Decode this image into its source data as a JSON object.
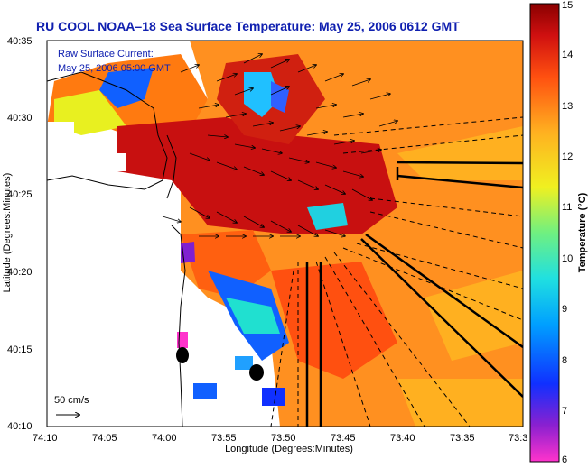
{
  "title": "RU COOL  NOAA–18  Sea Surface Temperature:  May 25, 2006 0612 GMT",
  "legend": {
    "line1": "Raw Surface Current:",
    "line2": "May 25, 2006 05:00 GMT"
  },
  "scale_label": "50 cm/s",
  "xaxis": {
    "label": "Longitude (Degrees:Minutes)",
    "ticks": [
      "74:10",
      "74:05",
      "74:00",
      "73:55",
      "73:50",
      "73:45",
      "73:40",
      "73:35",
      "73:3"
    ]
  },
  "yaxis": {
    "label": "Latitude (Degrees:Minutes)",
    "ticks": [
      "40:35",
      "40:30",
      "40:25",
      "40:20",
      "40:15",
      "40:10"
    ]
  },
  "colorbar": {
    "label": "Temperature (°C)",
    "ticks": [
      "15",
      "14",
      "13",
      "12",
      "11",
      "10",
      "9",
      "8",
      "7",
      "6"
    ],
    "range": [
      6,
      15
    ],
    "colors": [
      "#ff33cc",
      "#7a1fd0",
      "#1030ff",
      "#00a0ff",
      "#20e0e0",
      "#60f090",
      "#e8f020",
      "#ffb020",
      "#ff5010",
      "#c81010",
      "#8a0000"
    ]
  }
}
